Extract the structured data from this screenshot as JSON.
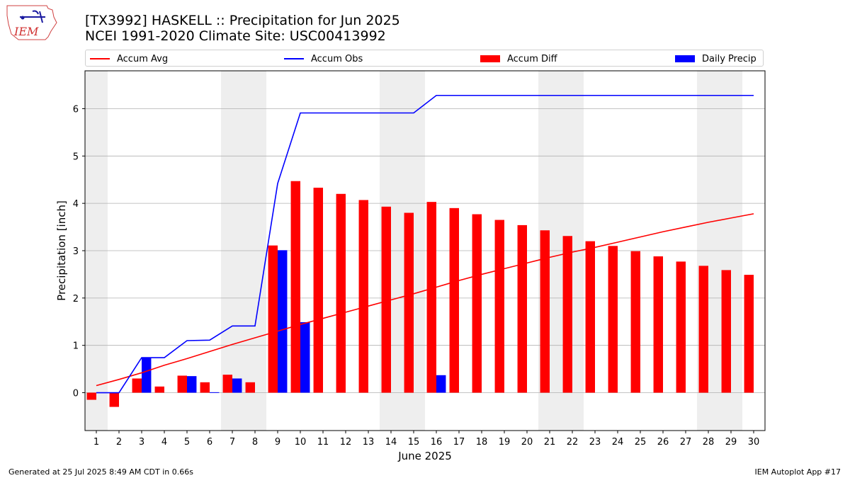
{
  "header": {
    "title_line1": "[TX3992] HASKELL :: Precipitation for Jun 2025",
    "title_line2": "NCEI 1991-2020 Climate Site: USC00413992"
  },
  "logo": {
    "text": "IEM",
    "icon": "iem-iowa-logo"
  },
  "footer": {
    "left": "Generated at 25 Jul 2025 8:49 AM CDT in 0.66s",
    "right": "IEM Autoplot App #17"
  },
  "colors": {
    "accum_avg": "#ff0000",
    "accum_obs": "#0000ff",
    "accum_diff": "#ff0000",
    "daily_precip": "#0000ff",
    "weekend_shade": "#eeeeee",
    "grid": "#b0b0b0"
  },
  "chart_data": {
    "type": "bar",
    "xlabel": "June 2025",
    "ylabel": "Precipitation [inch]",
    "ylim": [
      -0.8,
      6.8
    ],
    "yticks": [
      0,
      1,
      2,
      3,
      4,
      5,
      6
    ],
    "x": [
      1,
      2,
      3,
      4,
      5,
      6,
      7,
      8,
      9,
      10,
      11,
      12,
      13,
      14,
      15,
      16,
      17,
      18,
      19,
      20,
      21,
      22,
      23,
      24,
      25,
      26,
      27,
      28,
      29,
      30
    ],
    "grid": "horizontal",
    "legend_position": "top",
    "shaded_days": [
      1,
      7,
      8,
      14,
      15,
      21,
      22,
      28,
      29
    ],
    "series": [
      {
        "name": "Accum Avg",
        "type": "line",
        "values": [
          0.15,
          0.28,
          0.42,
          0.58,
          0.72,
          0.87,
          1.02,
          1.16,
          1.3,
          1.44,
          1.57,
          1.7,
          1.83,
          1.96,
          2.09,
          2.23,
          2.37,
          2.5,
          2.62,
          2.74,
          2.86,
          2.97,
          3.07,
          3.18,
          3.29,
          3.4,
          3.5,
          3.6,
          3.69,
          3.78
        ]
      },
      {
        "name": "Accum Obs",
        "type": "line",
        "values": [
          0,
          0,
          0.74,
          0.74,
          1.1,
          1.11,
          1.41,
          1.41,
          4.42,
          5.91,
          5.91,
          5.91,
          5.91,
          5.91,
          5.91,
          6.28,
          6.28,
          6.28,
          6.28,
          6.28,
          6.28,
          6.28,
          6.28,
          6.28,
          6.28,
          6.28,
          6.28,
          6.28,
          6.28,
          6.28
        ]
      },
      {
        "name": "Accum Diff",
        "type": "bar",
        "values": [
          -0.15,
          -0.3,
          0.3,
          0.13,
          0.36,
          0.22,
          0.38,
          0.22,
          3.11,
          4.47,
          4.33,
          4.2,
          4.07,
          3.93,
          3.8,
          4.03,
          3.9,
          3.77,
          3.65,
          3.54,
          3.43,
          3.31,
          3.2,
          3.1,
          2.99,
          2.88,
          2.77,
          2.68,
          2.59,
          2.49
        ]
      },
      {
        "name": "Daily Precip",
        "type": "bar",
        "values": [
          0,
          0,
          0.74,
          0,
          0.35,
          0.01,
          0.3,
          0,
          3.01,
          1.49,
          0,
          0,
          0,
          0,
          0,
          0.37,
          0,
          0,
          0,
          0,
          0,
          0,
          0,
          0,
          0,
          0,
          0,
          0,
          0,
          0
        ]
      }
    ]
  }
}
